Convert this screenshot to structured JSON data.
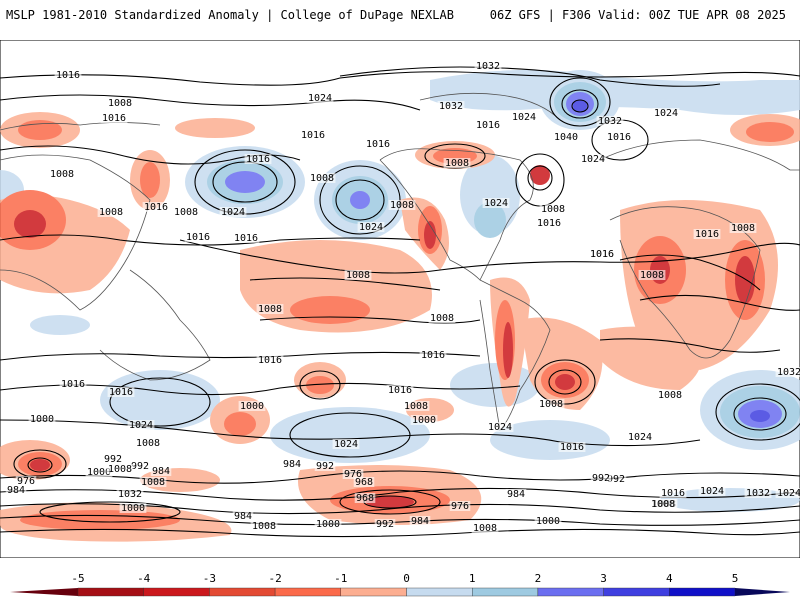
{
  "header": {
    "left_title": "MSLP 1981-2010 Standardized Anomaly | College of DuPage NEXLAB",
    "right_title": "06Z GFS | F306 Valid: 00Z TUE APR 08 2025"
  },
  "colorbar": {
    "ticks": [
      "-5",
      "-4",
      "-3",
      "-2",
      "-1",
      "0",
      "1",
      "2",
      "3",
      "4",
      "5"
    ],
    "colors": [
      "#a50f15",
      "#cb181d",
      "#e34a33",
      "#fb6a4a",
      "#fcae91",
      "#ffffff",
      "#c6dbef",
      "#9ecae1",
      "#6b6ef0",
      "#3f3fe0",
      "#1010c8"
    ]
  },
  "map": {
    "positive_color": "#fb6a4a",
    "negative_color": "#8c8cf5",
    "isobar_labels": [
      "1016",
      "1008",
      "1016",
      "1024",
      "1016",
      "1008",
      "1016",
      "1008",
      "1008",
      "1016",
      "1016",
      "1008",
      "1024",
      "1016",
      "1024",
      "1016",
      "1008",
      "1024",
      "1016",
      "1032",
      "1032",
      "1040",
      "1032",
      "1024",
      "1024",
      "1016",
      "1008",
      "1016",
      "1024",
      "1016",
      "1008",
      "1016",
      "1016",
      "1008",
      "1008",
      "1008",
      "1008",
      "1008",
      "1016",
      "1016",
      "1016",
      "1024",
      "1016",
      "1008",
      "1008",
      "1008",
      "1000",
      "1024",
      "1016",
      "1008",
      "1000",
      "1024",
      "1016",
      "1000",
      "992",
      "976",
      "984",
      "992",
      "984",
      "1000",
      "1008",
      "1008",
      "1032",
      "984",
      "992",
      "976",
      "968",
      "968",
      "984",
      "976",
      "992",
      "1000",
      "1008",
      "984",
      "1008",
      "1000",
      "992",
      "1016",
      "1024",
      "1024",
      "1032",
      "1008",
      "992",
      "1032",
      "1024",
      "1000",
      "1008",
      "984"
    ]
  }
}
